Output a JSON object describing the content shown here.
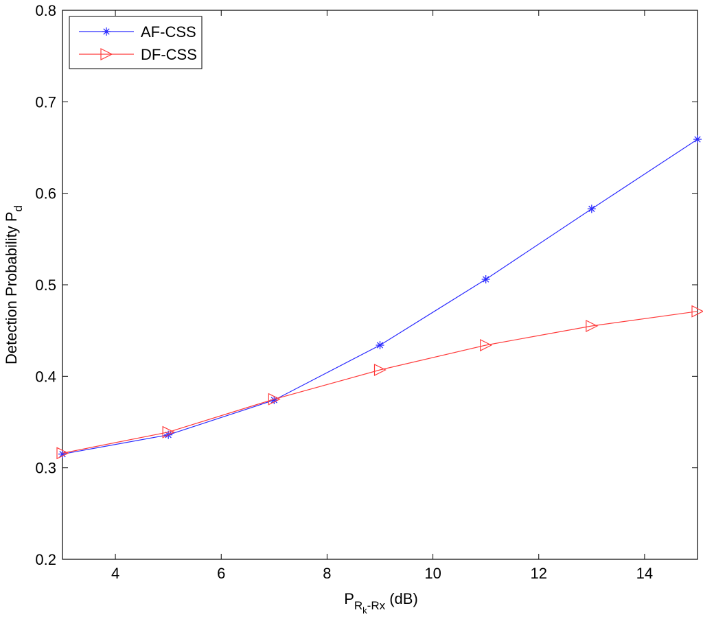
{
  "chart_data": {
    "type": "line",
    "title": "",
    "xlabel": {
      "main": "P",
      "subscript": "R",
      "sub_subscript": "k",
      "subscript_tail": "-Rx",
      "unit": " (dB)"
    },
    "ylabel": {
      "main": "Detection Probability P",
      "subscript": "d"
    },
    "xlim": [
      3,
      15
    ],
    "ylim": [
      0.2,
      0.8
    ],
    "xticks": [
      4,
      6,
      8,
      10,
      12,
      14
    ],
    "yticks": [
      0.2,
      0.3,
      0.4,
      0.5,
      0.6,
      0.7,
      0.8
    ],
    "grid": false,
    "legend_position": "top-left",
    "x": [
      3,
      5,
      7,
      9,
      11,
      13,
      15
    ],
    "series": [
      {
        "name": "AF-CSS",
        "color": "#2b2bff",
        "marker": "asterisk",
        "values": [
          0.315,
          0.336,
          0.374,
          0.434,
          0.506,
          0.583,
          0.659
        ]
      },
      {
        "name": "DF-CSS",
        "color": "#ff3b3b",
        "marker": "triangle-right",
        "values": [
          0.316,
          0.339,
          0.375,
          0.407,
          0.434,
          0.455,
          0.471
        ]
      }
    ]
  }
}
